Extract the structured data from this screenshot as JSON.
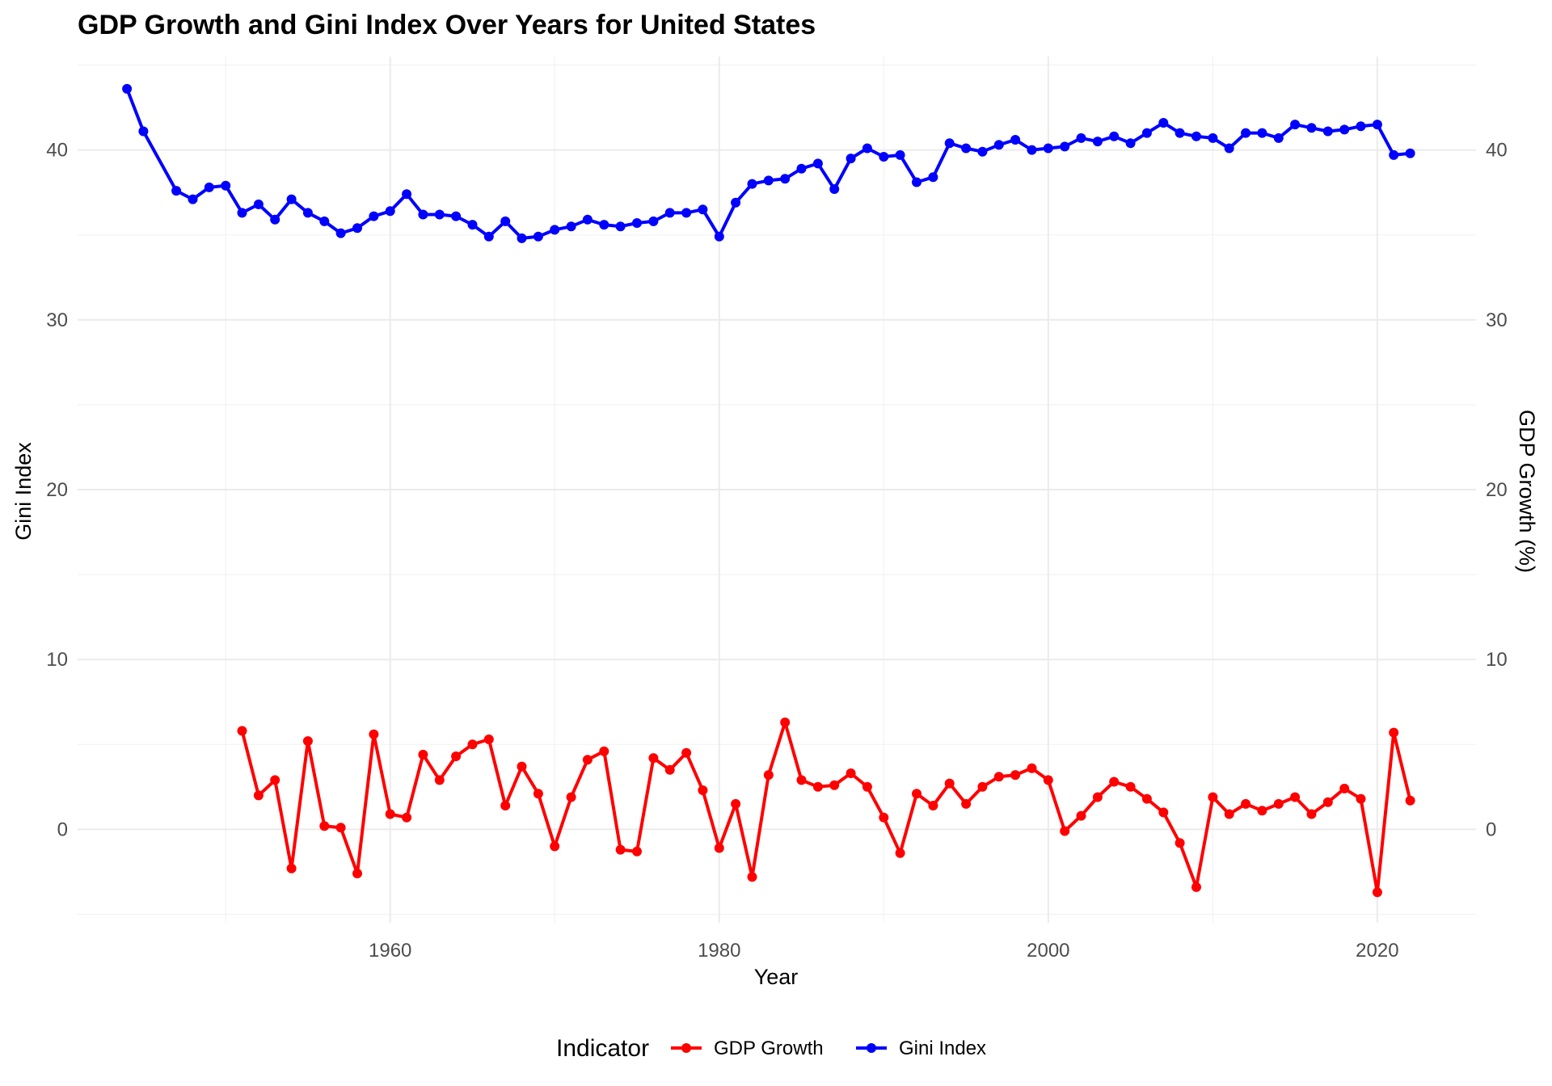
{
  "chart_data": {
    "type": "line",
    "title": "GDP Growth and Gini Index Over Years for United States",
    "xlabel": "Year",
    "ylabel_left": "Gini Index",
    "ylabel_right": "GDP Growth (%)",
    "x_ticks": [
      1960,
      1980,
      2000,
      2020
    ],
    "y_ticks": [
      0,
      10,
      20,
      30,
      40
    ],
    "xlim": [
      1941,
      2026
    ],
    "ylim": [
      -5.5,
      45.5
    ],
    "grid": true,
    "legend": {
      "title": "Indicator",
      "placement": "bottom",
      "entries": [
        "GDP Growth",
        "Gini Index"
      ]
    },
    "colors": {
      "GDP Growth": "#ff0000",
      "Gini Index": "#0000ff"
    },
    "series": [
      {
        "name": "Gini Index",
        "x": [
          1944,
          1945,
          1947,
          1948,
          1949,
          1950,
          1951,
          1952,
          1953,
          1954,
          1955,
          1956,
          1957,
          1958,
          1959,
          1960,
          1961,
          1962,
          1963,
          1964,
          1965,
          1966,
          1967,
          1968,
          1969,
          1970,
          1971,
          1972,
          1973,
          1974,
          1975,
          1976,
          1977,
          1978,
          1979,
          1980,
          1981,
          1982,
          1983,
          1984,
          1985,
          1986,
          1987,
          1988,
          1989,
          1990,
          1991,
          1992,
          1993,
          1994,
          1995,
          1996,
          1997,
          1998,
          1999,
          2000,
          2001,
          2002,
          2003,
          2004,
          2005,
          2006,
          2007,
          2008,
          2009,
          2010,
          2011,
          2012,
          2013,
          2014,
          2015,
          2016,
          2017,
          2018,
          2019,
          2020,
          2021,
          2022
        ],
        "y": [
          43.6,
          41.1,
          37.6,
          37.1,
          37.8,
          37.9,
          36.3,
          36.8,
          35.9,
          37.1,
          36.3,
          35.8,
          35.1,
          35.4,
          36.1,
          36.4,
          37.4,
          36.2,
          36.2,
          36.1,
          35.6,
          34.9,
          35.8,
          34.8,
          34.9,
          35.3,
          35.5,
          35.9,
          35.6,
          35.5,
          35.7,
          35.8,
          36.3,
          36.3,
          36.5,
          34.9,
          36.9,
          38.0,
          38.2,
          38.3,
          38.9,
          39.2,
          37.7,
          39.5,
          40.1,
          39.6,
          39.7,
          38.1,
          38.4,
          40.4,
          40.1,
          39.9,
          40.3,
          40.6,
          40.0,
          40.1,
          40.2,
          40.7,
          40.5,
          40.8,
          40.4,
          41.0,
          41.6,
          41.0,
          40.8,
          40.7,
          40.1,
          41.0,
          41.0,
          40.7,
          41.5,
          41.3,
          41.1,
          41.2,
          41.4,
          41.5,
          39.7,
          39.8
        ]
      },
      {
        "name": "GDP Growth",
        "x": [
          1951,
          1952,
          1953,
          1954,
          1955,
          1956,
          1957,
          1958,
          1959,
          1960,
          1961,
          1962,
          1963,
          1964,
          1965,
          1966,
          1967,
          1968,
          1969,
          1970,
          1971,
          1972,
          1973,
          1974,
          1975,
          1976,
          1977,
          1978,
          1979,
          1980,
          1981,
          1982,
          1983,
          1984,
          1985,
          1986,
          1987,
          1988,
          1989,
          1990,
          1991,
          1992,
          1993,
          1994,
          1995,
          1996,
          1997,
          1998,
          1999,
          2000,
          2001,
          2002,
          2003,
          2004,
          2005,
          2006,
          2007,
          2008,
          2009,
          2010,
          2011,
          2012,
          2013,
          2014,
          2015,
          2016,
          2017,
          2018,
          2019,
          2020,
          2021,
          2022
        ],
        "y": [
          5.8,
          2.0,
          2.9,
          -2.3,
          5.2,
          0.2,
          0.1,
          -2.6,
          5.6,
          0.9,
          0.7,
          4.4,
          2.9,
          4.3,
          5.0,
          5.3,
          1.4,
          3.7,
          2.1,
          -1.0,
          1.9,
          4.1,
          4.6,
          -1.2,
          -1.3,
          4.2,
          3.5,
          4.5,
          2.3,
          -1.1,
          1.5,
          -2.8,
          3.2,
          6.3,
          2.9,
          2.5,
          2.6,
          3.3,
          2.5,
          0.7,
          -1.4,
          2.1,
          1.4,
          2.7,
          1.5,
          2.5,
          3.1,
          3.2,
          3.6,
          2.9,
          -0.1,
          0.8,
          1.9,
          2.8,
          2.5,
          1.8,
          1.0,
          -0.8,
          -3.4,
          1.9,
          0.9,
          1.5,
          1.1,
          1.5,
          1.9,
          0.9,
          1.6,
          2.4,
          1.8,
          -3.7,
          5.7,
          1.7
        ]
      }
    ]
  }
}
